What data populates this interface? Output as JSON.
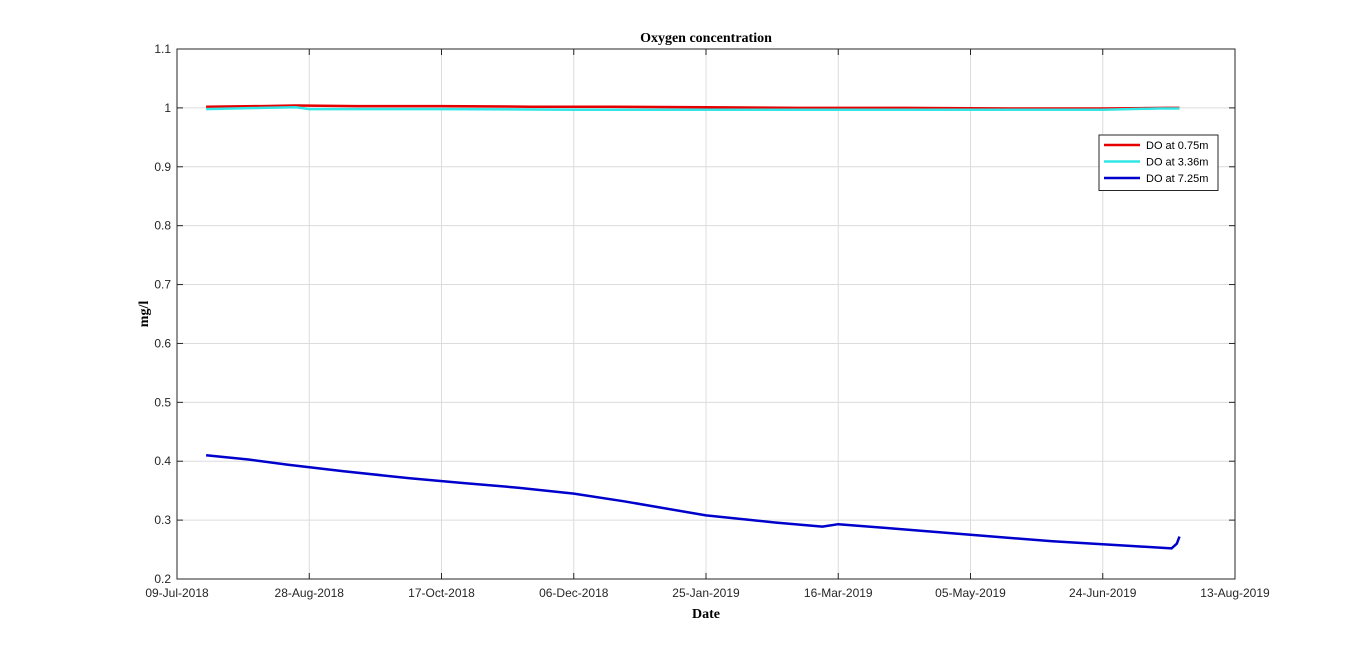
{
  "chart_data": {
    "type": "line",
    "title": "Oxygen concentration",
    "xlabel": "Date",
    "ylabel": "mg/l",
    "ylim": [
      0.2,
      1.1
    ],
    "xlim": [
      "09-Jul-2018",
      "13-Aug-2019"
    ],
    "x_ticks": [
      "09-Jul-2018",
      "28-Aug-2018",
      "17-Oct-2018",
      "06-Dec-2018",
      "25-Jan-2019",
      "16-Mar-2019",
      "05-May-2019",
      "24-Jun-2019",
      "13-Aug-2019"
    ],
    "y_ticks": [
      "0.2",
      "0.3",
      "0.4",
      "0.5",
      "0.6",
      "0.7",
      "0.8",
      "0.9",
      "1",
      "1.1"
    ],
    "grid": true,
    "legend_position": "top-right",
    "series": [
      {
        "name": "DO at 0.75m",
        "color": "#e60000",
        "points": [
          [
            "2018-07-20",
            1.002
          ],
          [
            "2018-08-10",
            1.003
          ],
          [
            "2018-08-23",
            1.004
          ],
          [
            "2018-09-15",
            1.003
          ],
          [
            "2018-10-17",
            1.003
          ],
          [
            "2018-11-20",
            1.002
          ],
          [
            "2018-12-20",
            1.002
          ],
          [
            "2019-01-25",
            1.001
          ],
          [
            "2019-03-01",
            1.0
          ],
          [
            "2019-04-10",
            1.0
          ],
          [
            "2019-05-20",
            0.999
          ],
          [
            "2019-06-24",
            0.999
          ],
          [
            "2019-07-18",
            1.0
          ],
          [
            "2019-07-23",
            1.0
          ]
        ]
      },
      {
        "name": "DO at 3.36m",
        "color": "#33e6e6",
        "points": [
          [
            "2018-07-20",
            0.998
          ],
          [
            "2018-08-10",
            1.0
          ],
          [
            "2018-08-23",
            1.001
          ],
          [
            "2018-08-28",
            0.998
          ],
          [
            "2018-10-17",
            0.998
          ],
          [
            "2018-12-06",
            0.997
          ],
          [
            "2019-01-25",
            0.997
          ],
          [
            "2019-03-16",
            0.997
          ],
          [
            "2019-05-05",
            0.997
          ],
          [
            "2019-06-24",
            0.997
          ],
          [
            "2019-07-15",
            0.999
          ],
          [
            "2019-07-23",
            0.999
          ]
        ]
      },
      {
        "name": "DO at 7.25m",
        "color": "#0000cc",
        "points": [
          [
            "2018-07-20",
            0.41
          ],
          [
            "2018-08-05",
            0.403
          ],
          [
            "2018-08-20",
            0.394
          ],
          [
            "2018-09-10",
            0.383
          ],
          [
            "2018-10-05",
            0.371
          ],
          [
            "2018-10-25",
            0.363
          ],
          [
            "2018-11-15",
            0.355
          ],
          [
            "2018-12-06",
            0.345
          ],
          [
            "2018-12-25",
            0.332
          ],
          [
            "2019-01-25",
            0.308
          ],
          [
            "2019-02-20",
            0.296
          ],
          [
            "2019-03-10",
            0.289
          ],
          [
            "2019-03-16",
            0.293
          ],
          [
            "2019-04-05",
            0.286
          ],
          [
            "2019-05-05",
            0.275
          ],
          [
            "2019-06-05",
            0.264
          ],
          [
            "2019-07-05",
            0.256
          ],
          [
            "2019-07-20",
            0.252
          ],
          [
            "2019-07-22",
            0.26
          ],
          [
            "2019-07-23",
            0.272
          ]
        ]
      }
    ]
  }
}
